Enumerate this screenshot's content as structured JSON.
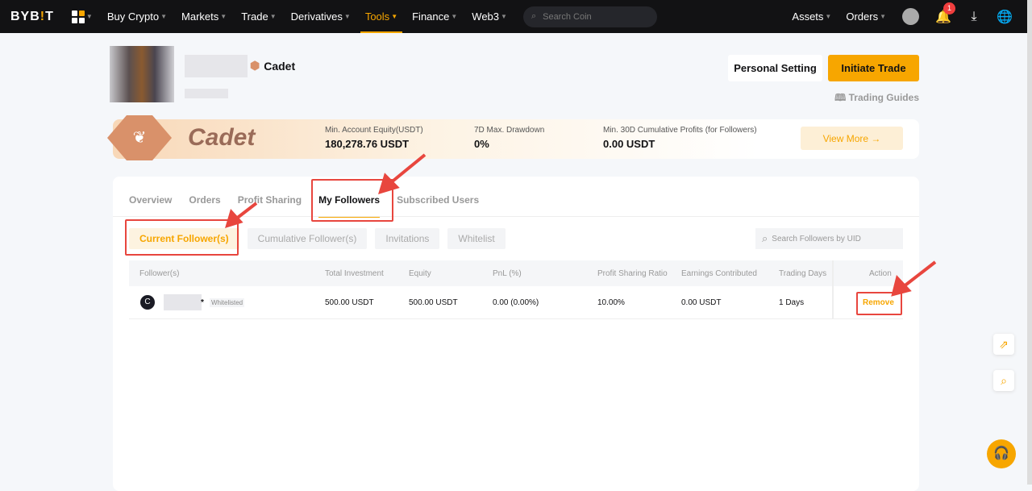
{
  "nav": {
    "logo_prefix": "BYB",
    "logo_mid": "!",
    "logo_suffix": "T",
    "items": [
      {
        "label": "Buy Crypto"
      },
      {
        "label": "Markets"
      },
      {
        "label": "Trade"
      },
      {
        "label": "Derivatives"
      },
      {
        "label": "Tools",
        "active": true
      },
      {
        "label": "Finance"
      },
      {
        "label": "Web3"
      }
    ],
    "search_placeholder": "Search Coin",
    "assets": "Assets",
    "orders": "Orders",
    "notification_count": "1"
  },
  "profile": {
    "level": "Cadet",
    "personal_setting": "Personal Setting",
    "initiate_trade": "Initiate Trade",
    "trading_guides": "Trading Guides"
  },
  "banner": {
    "level": "Cadet",
    "stats": [
      {
        "label": "Min. Account Equity(USDT)",
        "value": "180,278.76 USDT"
      },
      {
        "label": "7D Max. Drawdown",
        "value": "0%"
      },
      {
        "label": "Min. 30D Cumulative Profits (for Followers)",
        "value": "0.00 USDT"
      }
    ],
    "view_more": "View More →"
  },
  "tabs": [
    {
      "label": "Overview"
    },
    {
      "label": "Orders"
    },
    {
      "label": "Profit Sharing"
    },
    {
      "label": "My Followers",
      "active": true
    },
    {
      "label": "Subscribed Users"
    }
  ],
  "subtabs": [
    {
      "label": "Current Follower(s)",
      "active": true
    },
    {
      "label": "Cumulative Follower(s)"
    },
    {
      "label": "Invitations"
    },
    {
      "label": "Whitelist"
    }
  ],
  "follower_search_placeholder": "Search Followers by UID",
  "table": {
    "columns": [
      "Follower(s)",
      "Total Investment",
      "Equity",
      "PnL  (%)",
      "Profit Sharing Ratio",
      "Earnings Contributed",
      "Trading Days",
      "Action"
    ],
    "rows": [
      {
        "star": "*",
        "tag": "Whitelisted",
        "total_investment": "500.00 USDT",
        "equity": "500.00 USDT",
        "pnl": "0.00 (0.00%)",
        "ratio": "10.00%",
        "earnings": "0.00 USDT",
        "days": "1 Days",
        "action": "Remove"
      }
    ]
  },
  "colors": {
    "accent": "#f7a600",
    "annotation": "#e8463e",
    "nav_bg": "#121214"
  }
}
